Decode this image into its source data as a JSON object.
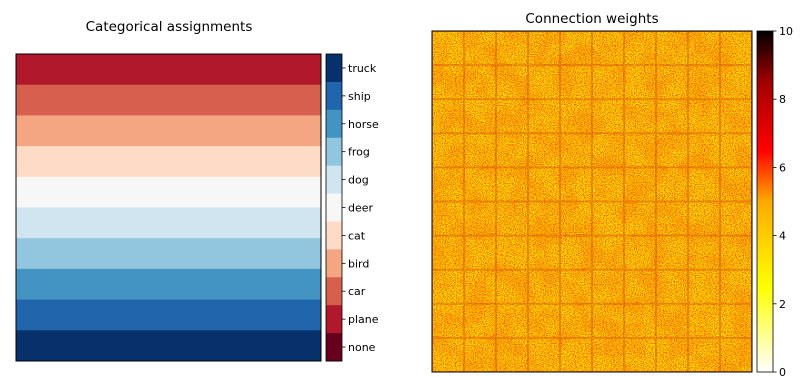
{
  "chart_data": [
    {
      "type": "heatmap",
      "title": "Categorical assignments",
      "rows": [
        "truck",
        "ship",
        "horse",
        "frog",
        "dog",
        "deer",
        "cat",
        "bird",
        "car",
        "plane"
      ],
      "colorbar": {
        "labels": [
          "truck",
          "ship",
          "horse",
          "frog",
          "dog",
          "deer",
          "cat",
          "bird",
          "car",
          "plane",
          "none"
        ],
        "colors": [
          "#08306b",
          "#2166ac",
          "#4393c3",
          "#92c5de",
          "#d1e5f0",
          "#f7f7f7",
          "#fddbc7",
          "#f4a582",
          "#d6604d",
          "#b2182b",
          "#67001f"
        ]
      },
      "row_colors": [
        "#b2182b",
        "#d6604d",
        "#f4a582",
        "#fddbc7",
        "#f7f7f7",
        "#d1e5f0",
        "#92c5de",
        "#4393c3",
        "#2166ac",
        "#08306b"
      ]
    },
    {
      "type": "heatmap",
      "title": "Connection weights",
      "grid": {
        "rows": 10,
        "cols": 10
      },
      "colormap": "hot_r",
      "colorbar": {
        "range": [
          0,
          10
        ],
        "ticks": [
          0,
          2,
          4,
          6,
          8,
          10
        ],
        "tick_labels": [
          "0",
          "2",
          "4",
          "6",
          "8",
          "10"
        ]
      }
    }
  ]
}
